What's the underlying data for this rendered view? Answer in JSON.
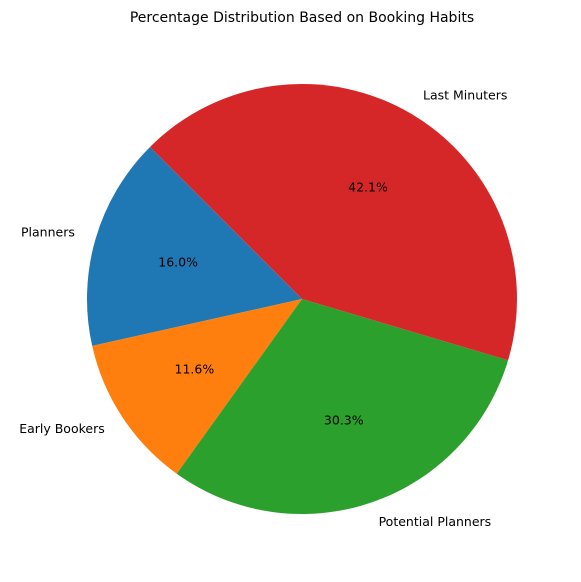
{
  "chart_data": {
    "type": "pie",
    "title": "Percentage Distribution Based on Booking Habits",
    "categories": [
      "Planners",
      "Early Bookers",
      "Potential Planners",
      "Last Minuters"
    ],
    "values": [
      16.0,
      11.6,
      30.3,
      42.1
    ],
    "value_labels": [
      "16.0%",
      "11.6%",
      "30.3%",
      "42.1%"
    ],
    "colors": [
      "#1f77b4",
      "#ff7f0e",
      "#2ca02c",
      "#d62728"
    ],
    "start_angle_deg": 135,
    "direction": "counterclockwise"
  }
}
